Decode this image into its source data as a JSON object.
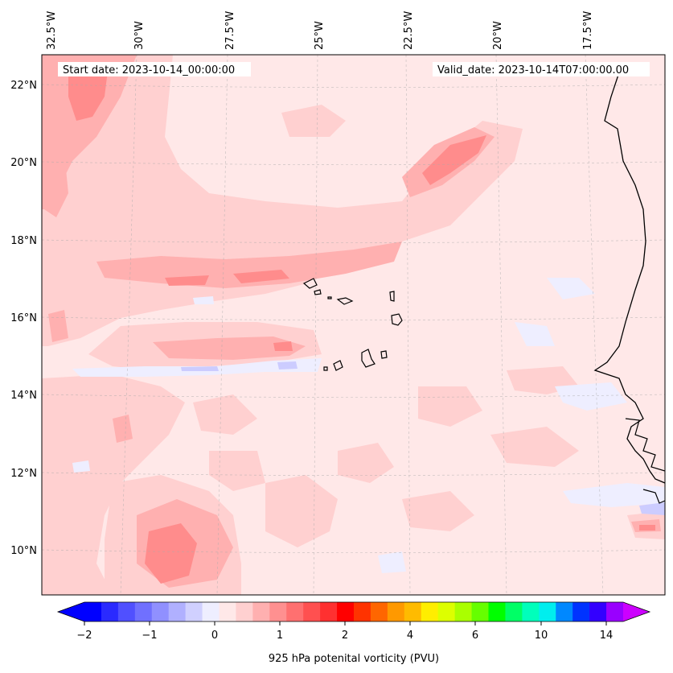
{
  "header": {
    "start_date": "Start date: 2023-10-14_00:00:00",
    "valid_date": "Valid_date: 2023-10-14T07:00:00.00"
  },
  "map": {
    "lon_labels": [
      "32.5°W",
      "30°W",
      "27.5°W",
      "25°W",
      "22.5°W",
      "20°W",
      "17.5°W"
    ],
    "lat_labels": [
      "22°N",
      "20°N",
      "18°N",
      "16°N",
      "14°N",
      "12°N",
      "10°N"
    ],
    "field": "925 hPa potenital vorticity",
    "colors": {
      "background_light": "#ffe8e8",
      "pink_1": "#ffd0d0",
      "pink_2": "#ffb0b0",
      "pink_3": "#ff8c8c",
      "pink_4": "#ff6e6e",
      "blue_light": "#eeeeff",
      "blue_mid": "#ccccff",
      "coastline": "#000000"
    }
  },
  "colorbar": {
    "label": "925 hPa potenital vorticity (PVU)",
    "tick_labels": [
      "−2",
      "−1",
      "0",
      "1",
      "2",
      "4",
      "6",
      "10",
      "14"
    ],
    "colors": [
      "#0000ff",
      "#2a2aff",
      "#5050ff",
      "#7070ff",
      "#9090ff",
      "#b0b0ff",
      "#d0d0ff",
      "#eeeeff",
      "#ffe8e8",
      "#ffd0d0",
      "#ffb0b0",
      "#ff9090",
      "#ff7070",
      "#ff5050",
      "#ff3030",
      "#ff0000",
      "#ff3300",
      "#ff6600",
      "#ff9900",
      "#ffbb00",
      "#ffee00",
      "#ddff00",
      "#aaff00",
      "#66ff00",
      "#00ff00",
      "#00ff66",
      "#00ffbb",
      "#00eeee",
      "#0088ff",
      "#0033ff",
      "#3300ff",
      "#9900ff"
    ],
    "min_color": "#0000ff",
    "max_color": "#cc00ff"
  }
}
